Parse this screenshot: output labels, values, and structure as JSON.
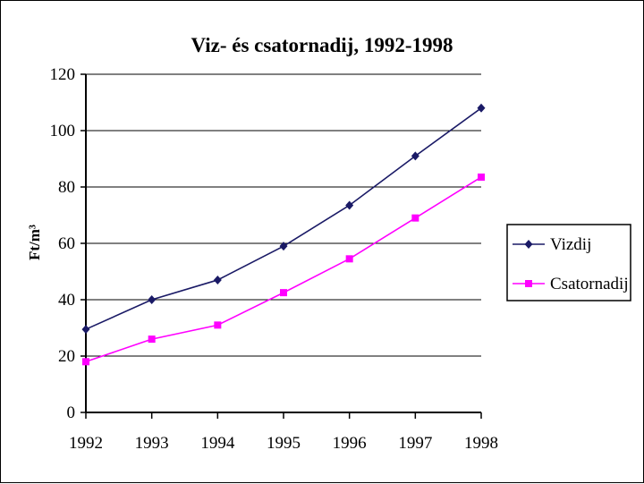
{
  "chart_data": {
    "type": "line",
    "title": "Viz- és csatornadij, 1992-1998",
    "xlabel": "",
    "ylabel": "Ft/m³",
    "x": [
      "1992",
      "1993",
      "1994",
      "1995",
      "1996",
      "1997",
      "1998"
    ],
    "ylim": [
      0,
      120
    ],
    "yticks": [
      0,
      20,
      40,
      60,
      80,
      100,
      120
    ],
    "grid": "horizontal",
    "legend_position": "right",
    "series": [
      {
        "name": "Vizdij",
        "values": [
          29.5,
          40,
          47,
          59,
          73.5,
          91,
          108
        ],
        "color": "#1a1a66",
        "marker": "diamond"
      },
      {
        "name": "Csatornadij",
        "values": [
          18,
          26,
          31,
          42.5,
          54.5,
          69,
          83.5
        ],
        "color": "#ff00ff",
        "marker": "square"
      }
    ]
  }
}
